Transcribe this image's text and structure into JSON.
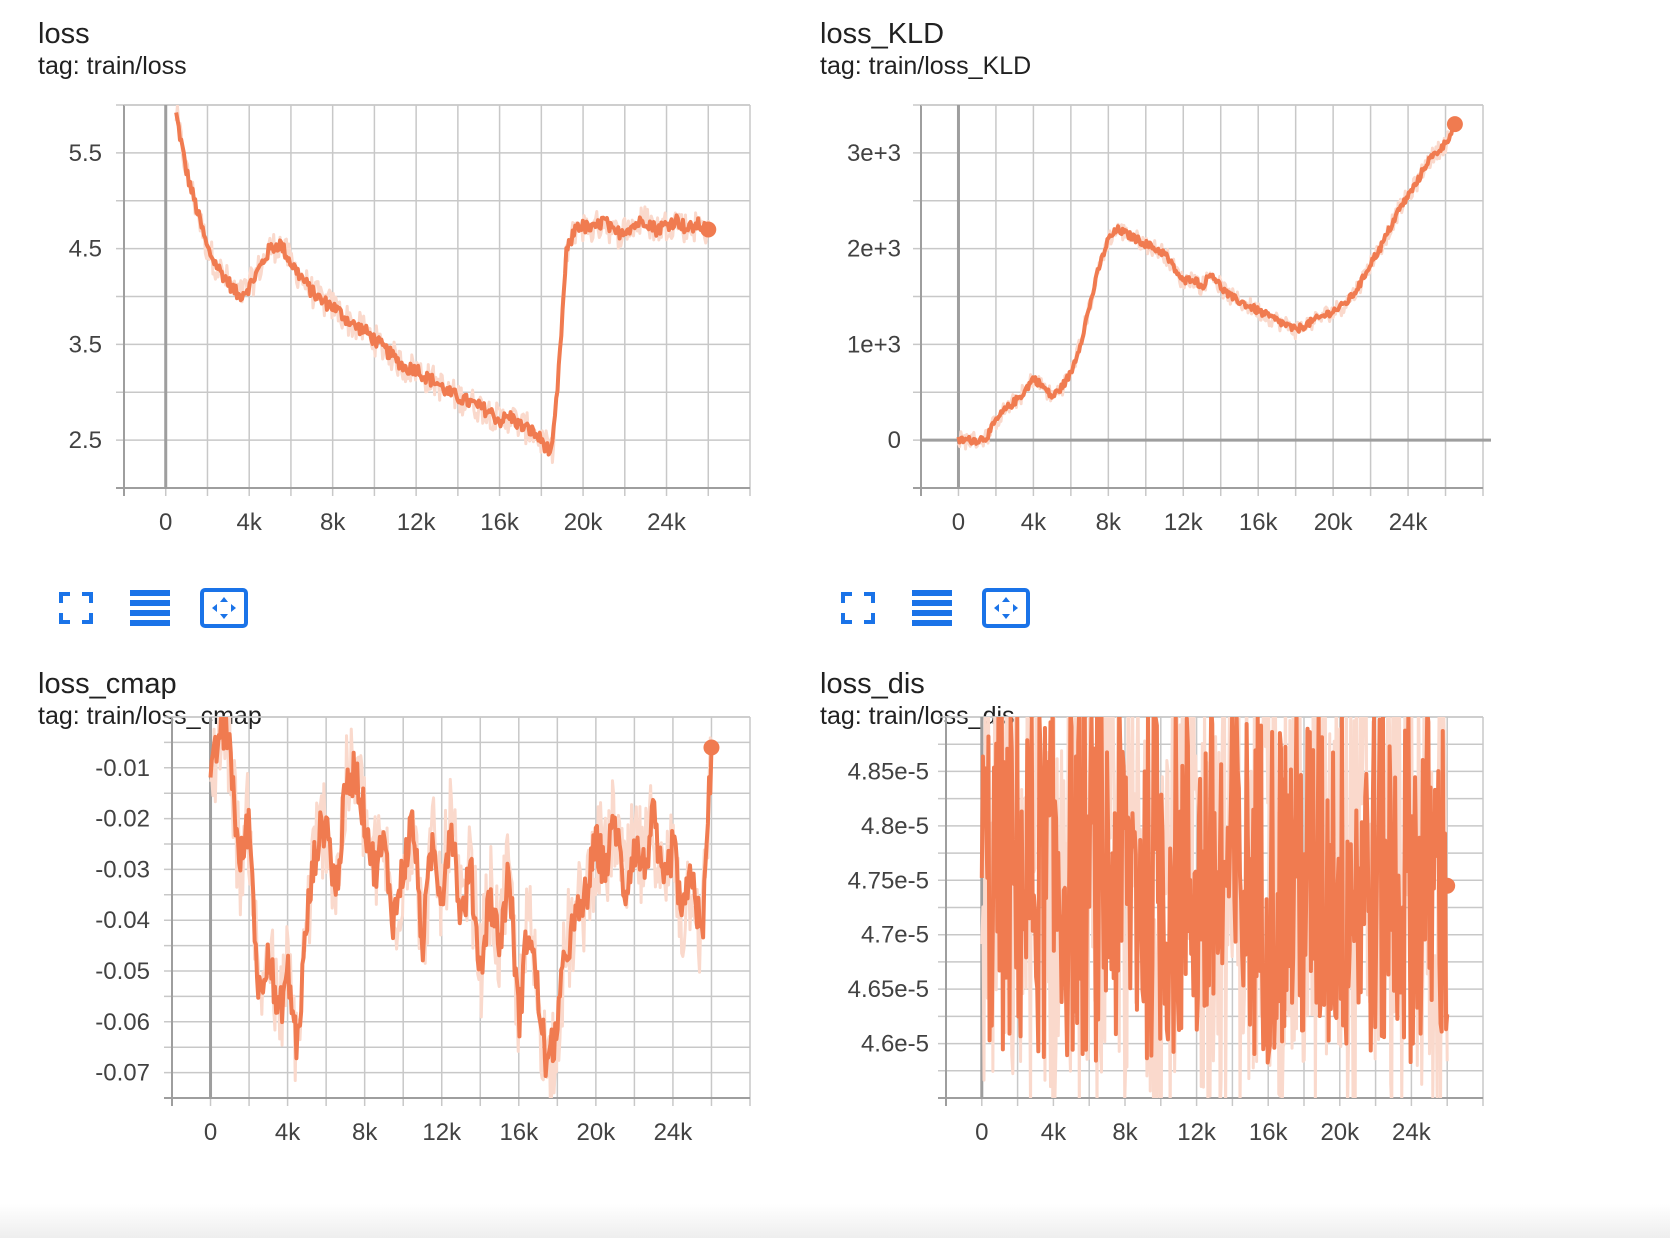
{
  "colors": {
    "line": "#f07b50",
    "raw": "#fad9cc",
    "grid": "#c8c8c8",
    "axis": "#9e9e9e",
    "icon": "#1a73e8"
  },
  "controls": {
    "icons": [
      "fullscreen-icon",
      "lines-icon",
      "fit-domain-icon"
    ]
  },
  "chart_data": [
    {
      "type": "line",
      "title": "loss",
      "tag": "tag: train/loss",
      "x_ticks": [
        "0",
        "4k",
        "8k",
        "12k",
        "16k",
        "20k",
        "24k"
      ],
      "x_tick_values": [
        0,
        4000,
        8000,
        12000,
        16000,
        20000,
        24000
      ],
      "xlim": [
        -2000,
        28000
      ],
      "y_ticks": [
        "2.5",
        "3.5",
        "4.5",
        "5.5"
      ],
      "y_tick_values": [
        2.5,
        3.5,
        4.5,
        5.5
      ],
      "ylim": [
        2.0,
        6.0
      ],
      "grid": true,
      "series": [
        {
          "x": [
            500,
            1000,
            1500,
            2000,
            2500,
            3000,
            3500,
            4000,
            4500,
            5000,
            5500,
            6000,
            6500,
            7000,
            7500,
            8000,
            8500,
            9000,
            9500,
            10000,
            10500,
            11000,
            11500,
            12000,
            12500,
            13000,
            13500,
            14000,
            14500,
            15000,
            15500,
            16000,
            16500,
            17000,
            17500,
            18000,
            18500,
            18800,
            19200,
            19700,
            20500,
            21000,
            21500,
            22000,
            22500,
            23000,
            23500,
            24000,
            24500,
            25000,
            25500,
            26000
          ],
          "y": [
            5.9,
            5.3,
            4.9,
            4.5,
            4.3,
            4.15,
            4.0,
            4.1,
            4.3,
            4.5,
            4.55,
            4.35,
            4.2,
            4.05,
            3.95,
            3.9,
            3.8,
            3.7,
            3.65,
            3.55,
            3.45,
            3.35,
            3.25,
            3.25,
            3.15,
            3.1,
            3.0,
            2.95,
            2.9,
            2.85,
            2.8,
            2.7,
            2.75,
            2.65,
            2.6,
            2.5,
            2.35,
            3.1,
            4.45,
            4.75,
            4.7,
            4.8,
            4.65,
            4.7,
            4.75,
            4.8,
            4.7,
            4.75,
            4.8,
            4.7,
            4.75,
            4.7
          ]
        }
      ]
    },
    {
      "type": "line",
      "title": "loss_KLD",
      "tag": "tag: train/loss_KLD",
      "x_ticks": [
        "0",
        "4k",
        "8k",
        "12k",
        "16k",
        "20k",
        "24k"
      ],
      "x_tick_values": [
        0,
        4000,
        8000,
        12000,
        16000,
        20000,
        24000
      ],
      "xlim": [
        -2000,
        28000
      ],
      "y_ticks": [
        "0",
        "1e+3",
        "2e+3",
        "3e+3"
      ],
      "y_tick_values": [
        0,
        1000,
        2000,
        3000
      ],
      "ylim": [
        -500,
        3500
      ],
      "grid": true,
      "series": [
        {
          "x": [
            0,
            1000,
            1500,
            2000,
            2500,
            3000,
            3500,
            4000,
            4500,
            5000,
            5500,
            6000,
            6500,
            7000,
            7500,
            8000,
            8500,
            9000,
            9500,
            10000,
            10500,
            11000,
            11500,
            12000,
            12500,
            13000,
            13500,
            14000,
            14500,
            15000,
            15500,
            16000,
            16500,
            17000,
            17500,
            18000,
            18500,
            19000,
            19500,
            20000,
            20500,
            21000,
            21500,
            22000,
            22500,
            23000,
            23500,
            24000,
            24500,
            25000,
            25500,
            26000,
            26500
          ],
          "y": [
            0,
            0,
            30,
            200,
            320,
            400,
            500,
            650,
            560,
            450,
            550,
            700,
            1000,
            1400,
            1800,
            2100,
            2200,
            2150,
            2100,
            2050,
            2000,
            1950,
            1800,
            1650,
            1700,
            1600,
            1750,
            1600,
            1500,
            1450,
            1400,
            1350,
            1300,
            1250,
            1200,
            1150,
            1200,
            1250,
            1300,
            1350,
            1400,
            1500,
            1650,
            1850,
            2000,
            2200,
            2400,
            2550,
            2700,
            2900,
            3000,
            3100,
            3300
          ]
        }
      ]
    },
    {
      "type": "line",
      "title": "loss_cmap",
      "tag": "tag: train/loss_cmap",
      "x_ticks": [
        "0",
        "4k",
        "8k",
        "12k",
        "16k",
        "20k",
        "24k"
      ],
      "x_tick_values": [
        0,
        4000,
        8000,
        12000,
        16000,
        20000,
        24000
      ],
      "xlim": [
        -2000,
        28000
      ],
      "y_ticks": [
        "-0.01",
        "-0.02",
        "-0.03",
        "-0.04",
        "-0.05",
        "-0.06",
        "-0.07"
      ],
      "y_tick_values": [
        -0.01,
        -0.02,
        -0.03,
        -0.04,
        -0.05,
        -0.06,
        -0.07
      ],
      "ylim": [
        -0.075,
        0
      ],
      "grid": true,
      "series": [
        {
          "x": [
            0,
            500,
            1000,
            1500,
            2000,
            2500,
            3000,
            3500,
            4000,
            4500,
            5000,
            5500,
            6000,
            6500,
            7000,
            7500,
            8000,
            8500,
            9000,
            9500,
            10000,
            10500,
            11000,
            11500,
            12000,
            12500,
            13000,
            13500,
            14000,
            14500,
            15000,
            15500,
            16000,
            16500,
            17000,
            17500,
            18000,
            18500,
            19000,
            19500,
            20000,
            20500,
            21000,
            21500,
            22000,
            22500,
            23000,
            23500,
            24000,
            24500,
            25000,
            25500,
            26000
          ],
          "y": [
            -0.014,
            -0.002,
            -0.005,
            -0.03,
            -0.02,
            -0.055,
            -0.045,
            -0.06,
            -0.05,
            -0.065,
            -0.04,
            -0.025,
            -0.02,
            -0.035,
            -0.015,
            -0.01,
            -0.02,
            -0.03,
            -0.025,
            -0.04,
            -0.03,
            -0.02,
            -0.045,
            -0.025,
            -0.035,
            -0.02,
            -0.04,
            -0.03,
            -0.05,
            -0.035,
            -0.045,
            -0.03,
            -0.06,
            -0.04,
            -0.055,
            -0.07,
            -0.06,
            -0.045,
            -0.04,
            -0.035,
            -0.025,
            -0.03,
            -0.02,
            -0.035,
            -0.025,
            -0.03,
            -0.02,
            -0.035,
            -0.025,
            -0.04,
            -0.03,
            -0.045,
            -0.006
          ]
        }
      ]
    },
    {
      "type": "line",
      "title": "loss_dis",
      "tag": "tag: train/loss_dis",
      "x_ticks": [
        "0",
        "4k",
        "8k",
        "12k",
        "16k",
        "20k",
        "24k"
      ],
      "x_tick_values": [
        0,
        4000,
        8000,
        12000,
        16000,
        20000,
        24000
      ],
      "xlim": [
        -2000,
        28000
      ],
      "y_ticks": [
        "4.85e-5",
        "4.8e-5",
        "4.75e-5",
        "4.7e-5",
        "4.65e-5",
        "4.6e-5"
      ],
      "y_tick_values": [
        4.85e-05,
        4.8e-05,
        4.75e-05,
        4.7e-05,
        4.65e-05,
        4.6e-05
      ],
      "ylim": [
        4.55e-05,
        4.9e-05
      ],
      "grid": true,
      "series": [
        {
          "x": [
            0,
            26000
          ],
          "y": [
            4.72e-05,
            4.745e-05
          ],
          "mean": 4.75e-05,
          "spread": 1.6e-06
        }
      ]
    }
  ]
}
